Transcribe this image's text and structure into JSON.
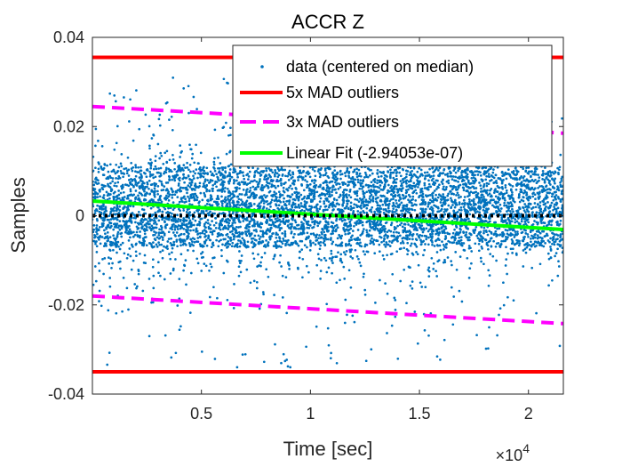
{
  "chart_data": {
    "type": "scatter",
    "title": "ACCR Z",
    "xlabel": "Time [sec]",
    "ylabel": "Samples",
    "x_exponent_label": "×10",
    "x_exponent_power": "4",
    "xlim": [
      0,
      21600
    ],
    "ylim": [
      -0.04,
      0.04
    ],
    "x_ticks": [
      5000,
      10000,
      15000,
      20000
    ],
    "x_tick_labels": [
      "0.5",
      "1",
      "1.5",
      "2"
    ],
    "y_ticks": [
      -0.04,
      -0.02,
      0,
      0.02,
      0.04
    ],
    "y_tick_labels": [
      "-0.04",
      "-0.02",
      "0",
      "0.02",
      "0.04"
    ],
    "grid": false,
    "legend_position": "top-right",
    "series": [
      {
        "name": "data (centered on median)",
        "kind": "points",
        "color": "#0072BD",
        "x_range": [
          0,
          21600
        ],
        "core_band": [
          -0.007,
          0.011
        ],
        "spread_std": 0.0075,
        "approx_min": -0.034,
        "approx_max": 0.031
      },
      {
        "name": "5x MAD outliers",
        "kind": "hline-pair",
        "color": "#FF0000",
        "style": "solid",
        "values": [
          0.0355,
          -0.035
        ]
      },
      {
        "name": "3x MAD outliers",
        "kind": "line-pair",
        "color": "#FF00FF",
        "style": "dashed",
        "upper": [
          [
            0,
            0.0245
          ],
          [
            21600,
            0.0185
          ]
        ],
        "lower": [
          [
            0,
            -0.018
          ],
          [
            21600,
            -0.0242
          ]
        ]
      },
      {
        "name": "Linear Fit (-2.94053e-07)",
        "kind": "line",
        "color": "#00FF00",
        "style": "solid",
        "points": [
          [
            0,
            0.0033
          ],
          [
            21600,
            -0.0031
          ]
        ]
      },
      {
        "name": "",
        "kind": "line",
        "color": "#000000",
        "style": "dotted",
        "points": [
          [
            0,
            0
          ],
          [
            21600,
            0
          ]
        ]
      }
    ]
  }
}
